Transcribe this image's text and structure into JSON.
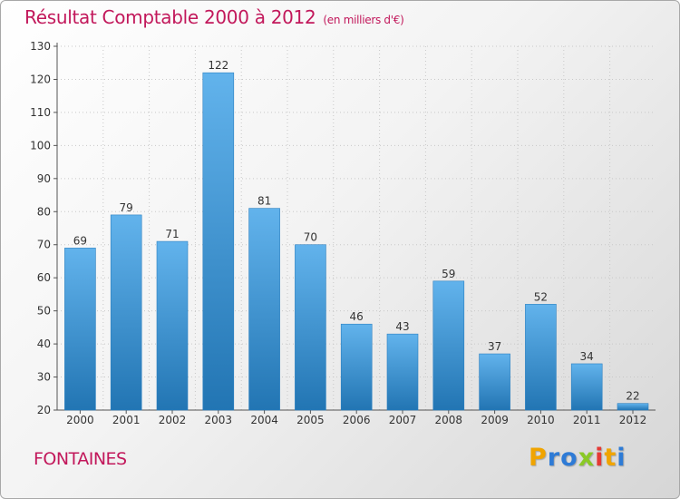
{
  "page": {
    "title": "Résultat Comptable 2000 à 2012",
    "subtitle": "(en milliers d'€)",
    "place": "FONTAINES",
    "logo": {
      "letters": [
        "P",
        "r",
        "o",
        "x",
        "i",
        "t",
        "i"
      ],
      "colors": [
        "#f0a400",
        "#2e7bd6",
        "#2e7bd6",
        "#8ac926",
        "#e53935",
        "#f0a400",
        "#2e7bd6"
      ]
    }
  },
  "chart_data": {
    "type": "bar",
    "title": "Résultat Comptable 2000 à 2012",
    "subtitle": "(en milliers d'€)",
    "categories": [
      "2000",
      "2001",
      "2002",
      "2003",
      "2004",
      "2005",
      "2006",
      "2007",
      "2008",
      "2009",
      "2010",
      "2011",
      "2012"
    ],
    "values": [
      69,
      79,
      71,
      122,
      81,
      70,
      46,
      43,
      59,
      37,
      52,
      34,
      22
    ],
    "ylim": [
      20,
      130
    ],
    "yticks": [
      20,
      30,
      40,
      50,
      60,
      70,
      80,
      90,
      100,
      110,
      120,
      130
    ],
    "xlabel": "",
    "ylabel": "",
    "bar_color_top": "#62b3ec",
    "bar_color_bottom": "#2275b3"
  }
}
